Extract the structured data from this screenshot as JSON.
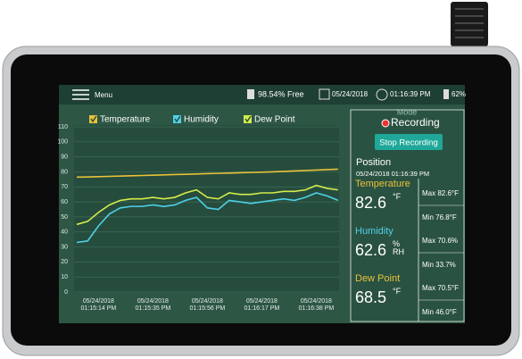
{
  "status_bar": {
    "menu": "Menu",
    "storage": "98.54% Free",
    "date": "05/24/2018",
    "time": "01:16:39 PM",
    "battery": "62%"
  },
  "chart_data": {
    "type": "line",
    "categories": [
      null,
      null,
      "05/24/2018\n01:15:14 PM",
      null,
      null,
      null,
      null,
      "05/24/2018\n01:15:35 PM",
      null,
      null,
      null,
      null,
      "05/24/2018\n01:15:56 PM",
      null,
      null,
      null,
      null,
      "05/24/2018\n01:16:17 PM",
      null,
      null,
      null,
      null,
      "05/24/2018\n01:16:38 PM",
      null,
      null
    ],
    "series": [
      {
        "name": "Temperature",
        "color": "#e8c23a",
        "values": [
          76.5,
          76.6,
          76.8,
          77,
          77.2,
          77.4,
          77.6,
          77.8,
          78,
          78.2,
          78.4,
          78.6,
          78.8,
          79,
          79.2,
          79.4,
          79.6,
          79.8,
          80,
          80.3,
          80.6,
          80.9,
          81.2,
          81.5,
          81.8
        ]
      },
      {
        "name": "Humidity",
        "color": "#4fd0e8",
        "values": [
          33,
          34,
          44,
          52,
          56,
          57,
          57,
          58,
          57,
          58,
          61,
          63,
          56,
          55,
          61,
          60,
          59,
          60,
          61,
          62,
          61,
          63,
          66,
          64,
          61
        ]
      },
      {
        "name": "Dew Point",
        "color": "#d4ec4a",
        "values": [
          45,
          47,
          53,
          58,
          61,
          62,
          62,
          63,
          62,
          63,
          66,
          68,
          63,
          62,
          66,
          65,
          65,
          66,
          66,
          67,
          67,
          68,
          71,
          69,
          68
        ]
      }
    ],
    "ylim": [
      0,
      110
    ],
    "yticks": [
      0,
      10,
      20,
      30,
      40,
      50,
      60,
      70,
      80,
      90,
      100,
      110
    ],
    "grid": true
  },
  "panel": {
    "mode": "Mode",
    "status": "Recording",
    "button": "Stop Recording",
    "position_title": "Position",
    "position_time": "05/24/2018 01:16:39 PM",
    "readings": [
      {
        "label": "Temperature",
        "value": 82.6,
        "unit": "°F",
        "max": "Max 82.6°F",
        "min": "Min 76.8°F",
        "color": "#e8c23a"
      },
      {
        "label": "Humidity",
        "value": 62.6,
        "unit": "%\nRH",
        "max": "Max 70.6%",
        "min": "Min 33.7%",
        "color": "#4fd0e8"
      },
      {
        "label": "Dew Point",
        "value": 68.5,
        "unit": "°F",
        "max": "Max 70.5°F",
        "min": "Min 46.0°F",
        "color": "#e8c23a"
      }
    ]
  }
}
